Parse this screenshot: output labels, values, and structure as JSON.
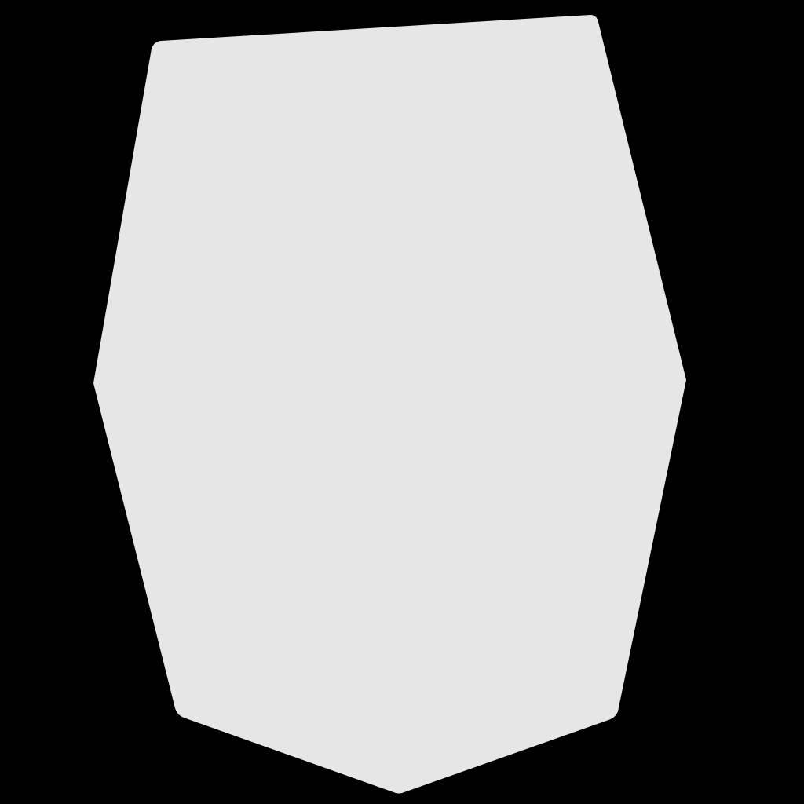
{
  "colors": {
    "background": "#000000",
    "shape_fill": "#e6e6e6"
  },
  "shape": {
    "kind": "irregular-polygon"
  }
}
